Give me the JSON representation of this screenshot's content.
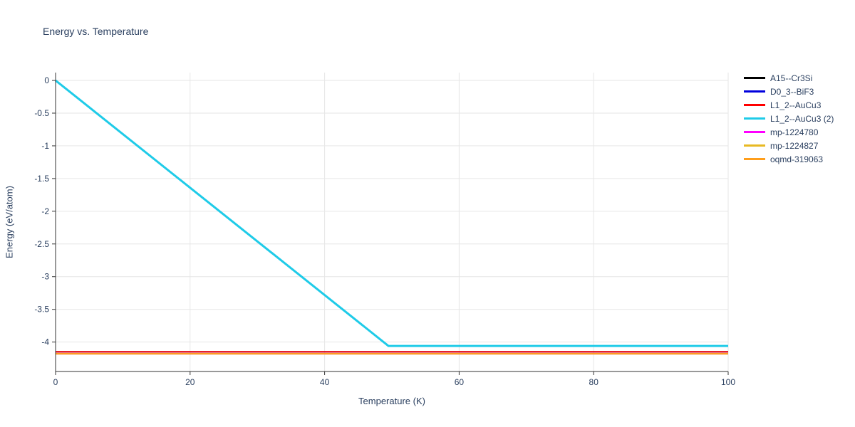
{
  "page": {
    "background": "#ffffff"
  },
  "chart_data": {
    "type": "line",
    "title": "Energy vs. Temperature",
    "xlabel": "Temperature (K)",
    "ylabel": "Energy (eV/atom)",
    "xlim": [
      0,
      100
    ],
    "ylim": [
      -4.45,
      0.12
    ],
    "x_ticks": [
      0,
      20,
      40,
      60,
      80,
      100
    ],
    "y_ticks": [
      0,
      -0.5,
      -1,
      -1.5,
      -2,
      -2.5,
      -3,
      -3.5,
      -4
    ],
    "grid": true,
    "legend_position": "top-right",
    "colors": {
      "grid": "#e6e6e6",
      "axis": "#333333",
      "text": "#2a3f5f"
    },
    "series": [
      {
        "name": "A15--Cr3Si",
        "color": "#000000",
        "width": 2,
        "x": [
          0,
          100
        ],
        "y": [
          -4.15,
          -4.15
        ]
      },
      {
        "name": "D0_3--BiF3",
        "color": "#0000dd",
        "width": 2,
        "x": [
          0,
          100
        ],
        "y": [
          -4.15,
          -4.15
        ]
      },
      {
        "name": "L1_2--AuCu3",
        "color": "#ff0000",
        "width": 2,
        "x": [
          0,
          100
        ],
        "y": [
          -4.15,
          -4.15
        ]
      },
      {
        "name": "L1_2--AuCu3 (2)",
        "color": "#1fcbe8",
        "width": 3,
        "x": [
          0,
          49.5,
          100
        ],
        "y": [
          0,
          -4.06,
          -4.06
        ]
      },
      {
        "name": "mp-1224780",
        "color": "#ff00ff",
        "width": 2,
        "x": [
          0,
          100
        ],
        "y": [
          -4.18,
          -4.18
        ]
      },
      {
        "name": "mp-1224827",
        "color": "#e8b923",
        "width": 2,
        "x": [
          0,
          100
        ],
        "y": [
          -4.18,
          -4.18
        ]
      },
      {
        "name": "oqmd-319063",
        "color": "#ff9e1b",
        "width": 2,
        "x": [
          0,
          100
        ],
        "y": [
          -4.18,
          -4.18
        ]
      }
    ]
  }
}
